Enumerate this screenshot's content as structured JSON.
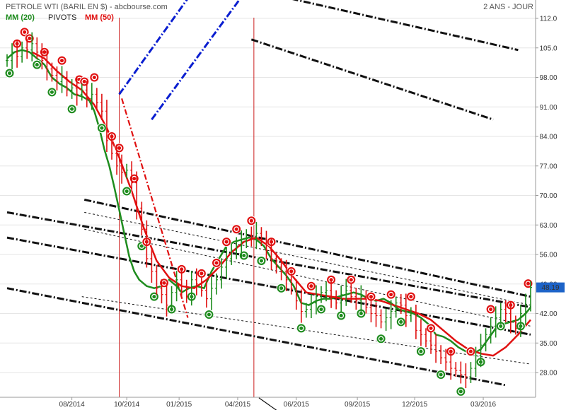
{
  "header": {
    "title": "PETROLE WTI (BARIL EN $) - abcbourse.com",
    "period": "2 ANS - JOUR",
    "legend": [
      {
        "label": "MM (20)",
        "color": "#1e8c1e"
      },
      {
        "label": "PIVOTS",
        "color": "#222222"
      },
      {
        "label": "MM (50)",
        "color": "#e01010"
      }
    ]
  },
  "chart_data": {
    "type": "line",
    "title": "PETROLE WTI (BARIL EN $)",
    "ylim": [
      23,
      115
    ],
    "yticks": [
      "112.0",
      "105.0",
      "98.00",
      "91.00",
      "84.00",
      "77.00",
      "70.00",
      "63.00",
      "56.00",
      "49.00",
      "42.00",
      "35.00",
      "28.00"
    ],
    "xticks": [
      "08/2014",
      "10/2014",
      "01/2015",
      "04/2015",
      "06/2015",
      "09/2015",
      "12/2015",
      "03/2016"
    ],
    "last_price": "48.19",
    "last_price_color": "#1d63c8",
    "colors": {
      "up": "#1e8c1e",
      "down": "#e01010",
      "pivot": "#111111",
      "channel": "#0a1ed0"
    },
    "series": [
      {
        "name": "MM (20)",
        "x": [
          0,
          6,
          12,
          18,
          24,
          30,
          36,
          42,
          48,
          54,
          60,
          66,
          70,
          74,
          78,
          82,
          86,
          90,
          94,
          98,
          102,
          106,
          112,
          118,
          124,
          130,
          136,
          140,
          146,
          152,
          158,
          164,
          170,
          176,
          182,
          188,
          194,
          200,
          206,
          212,
          218,
          224,
          230,
          236,
          242,
          248,
          254,
          260,
          266,
          272,
          278,
          284,
          290,
          296,
          302,
          308,
          314,
          320,
          326,
          332,
          338,
          344,
          350,
          356,
          362,
          368,
          374,
          380,
          386,
          392,
          398,
          404,
          410,
          416,
          420
        ],
        "values": [
          102.5,
          104.0,
          104.5,
          104.0,
          102.5,
          101.0,
          98.0,
          96.5,
          95.5,
          94.0,
          93.5,
          92.5,
          90.0,
          86.0,
          81.0,
          77.0,
          72.0,
          66.5,
          61.0,
          55.5,
          52.0,
          50.0,
          48.5,
          48.0,
          48.5,
          50.0,
          48.5,
          47.0,
          48.0,
          48.5,
          48.0,
          52.0,
          55.0,
          58.0,
          59.0,
          59.5,
          60.0,
          59.5,
          58.0,
          55.0,
          53.0,
          51.0,
          48.5,
          44.5,
          44.0,
          45.0,
          45.5,
          45.5,
          46.0,
          46.5,
          47.0,
          46.5,
          45.5,
          45.0,
          45.5,
          44.5,
          43.0,
          42.5,
          42.0,
          41.0,
          39.5,
          37.0,
          36.5,
          35.5,
          34.0,
          33.0,
          32.5,
          33.5,
          36.0,
          38.5,
          39.5,
          40.0,
          40.5,
          42.0,
          43.5
        ]
      },
      {
        "name": "MM (50)",
        "x": [
          20,
          30,
          40,
          50,
          60,
          70,
          80,
          90,
          100,
          110,
          120,
          130,
          140,
          150,
          160,
          170,
          180,
          190,
          200,
          210,
          220,
          230,
          240,
          250,
          260,
          270,
          280,
          290,
          300,
          310,
          320,
          330,
          340,
          350,
          360,
          370,
          380,
          390,
          400,
          410,
          420
        ],
        "values": [
          104.0,
          102.5,
          99.5,
          97.0,
          95.0,
          91.5,
          86.0,
          79.0,
          71.0,
          62.0,
          54.5,
          50.5,
          48.5,
          48.0,
          50.0,
          53.0,
          56.5,
          59.0,
          60.0,
          58.0,
          54.5,
          50.5,
          47.0,
          46.5,
          46.0,
          45.5,
          45.5,
          45.5,
          45.0,
          44.0,
          43.0,
          42.0,
          40.5,
          38.0,
          35.5,
          33.5,
          32.5,
          32.0,
          34.0,
          37.0,
          40.5
        ]
      },
      {
        "name": "",
        "x": [
          0,
          4,
          8,
          12,
          16,
          20,
          24,
          28,
          32,
          36,
          40,
          44,
          48,
          52,
          56,
          60,
          64,
          68,
          72,
          76,
          80,
          84,
          88,
          92,
          96,
          100,
          104,
          108,
          112,
          116,
          120,
          124,
          128,
          132,
          136,
          140,
          144,
          148,
          152,
          156,
          160,
          164,
          168,
          172,
          176,
          180,
          184,
          188,
          192,
          196,
          200,
          204,
          208,
          212,
          216,
          220,
          224,
          228,
          232,
          236,
          240,
          244,
          248,
          252,
          256,
          260,
          264,
          268,
          272,
          276,
          280,
          284,
          288,
          292,
          296,
          300,
          304,
          308,
          312,
          316,
          320,
          324,
          328,
          332,
          336,
          340,
          344,
          348,
          352,
          356,
          360,
          364,
          368,
          372,
          376,
          380,
          384,
          388,
          392,
          396,
          400,
          404,
          408,
          412,
          416,
          420
        ],
        "values": [
          102.0,
          104.0,
          103.0,
          105.0,
          104.5,
          106.0,
          104.0,
          102.0,
          100.0,
          98.5,
          97.0,
          98.0,
          95.0,
          95.5,
          94.0,
          95.0,
          93.0,
          94.0,
          92.0,
          90.0,
          83.0,
          80.0,
          77.0,
          75.5,
          76.0,
          73.0,
          67.0,
          62.0,
          55.0,
          52.0,
          48.0,
          46.5,
          44.0,
          47.0,
          50.0,
          48.5,
          46.0,
          50.0,
          49.0,
          47.5,
          45.5,
          48.0,
          50.0,
          53.0,
          55.0,
          57.0,
          58.0,
          59.0,
          60.5,
          60.0,
          61.0,
          59.5,
          57.0,
          55.0,
          53.0,
          52.0,
          50.0,
          48.0,
          45.0,
          42.5,
          43.0,
          44.5,
          46.0,
          47.0,
          47.5,
          46.0,
          44.5,
          46.5,
          47.5,
          46.0,
          45.0,
          46.0,
          43.5,
          42.0,
          41.5,
          40.0,
          41.0,
          42.5,
          44.5,
          44.0,
          41.5,
          42.0,
          38.0,
          37.0,
          35.5,
          34.5,
          33.0,
          31.5,
          30.5,
          29.0,
          28.5,
          27.5,
          27.0,
          29.0,
          32.0,
          34.5,
          37.0,
          39.0,
          41.0,
          43.0,
          42.0,
          40.0,
          38.5,
          42.0,
          44.0,
          48.19
        ]
      }
    ]
  }
}
